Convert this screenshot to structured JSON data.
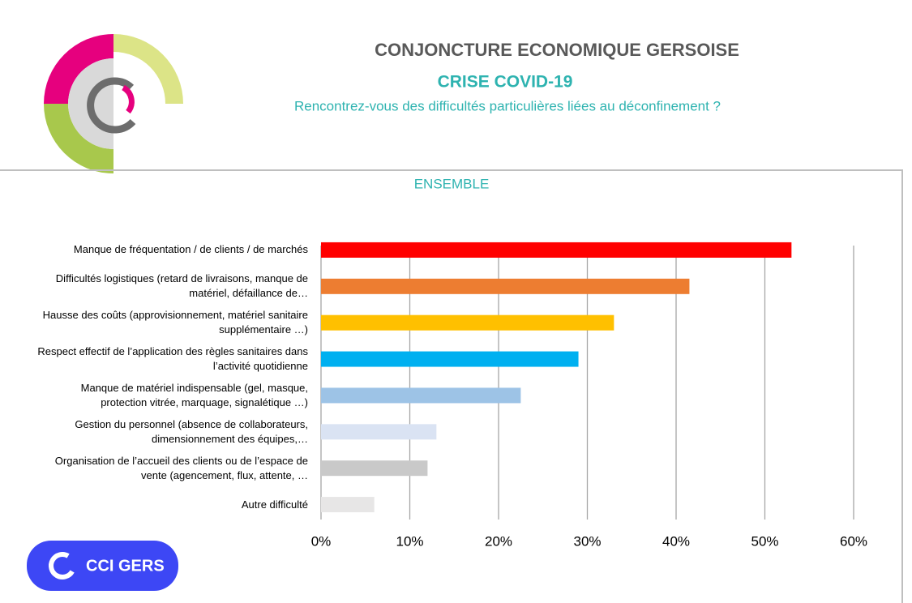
{
  "header": {
    "title": "CONJONCTURE ECONOMIQUE GERSOISE",
    "subtitle": "CRISE COVID-19",
    "question": "Rencontrez-vous des difficultés particulières liées au déconfinement ?"
  },
  "badge": "CCI GERS",
  "chart_data": {
    "type": "barh",
    "title": "ENSEMBLE",
    "categories": [
      "Manque de fréquentation / de clients / de marchés",
      "Difficultés logistiques (retard de livraisons, manque de matériel, défaillance de…",
      "Hausse des coûts (approvisionnement, matériel sanitaire supplémentaire …)",
      "Respect effectif de l’application des règles sanitaires dans l’activité quotidienne",
      "Manque de matériel indispensable (gel, masque, protection vitrée, marquage, signalétique …)",
      "Gestion du personnel (absence de collaborateurs, dimensionnement des équipes,…",
      "Organisation de l’accueil des clients ou de l’espace de vente (agencement, flux, attente, …",
      "Autre difficulté"
    ],
    "values": [
      53,
      41.5,
      33,
      29,
      22.5,
      13,
      12,
      6
    ],
    "colors": [
      "#ff0000",
      "#ed7d31",
      "#ffc000",
      "#00b0f0",
      "#9dc3e6",
      "#dae3f3",
      "#c9c9c9",
      "#e7e6e6"
    ],
    "xlim": [
      0,
      60
    ],
    "xticks": [
      {
        "value": 0,
        "label": "0%"
      },
      {
        "value": 10,
        "label": "10%"
      },
      {
        "value": 20,
        "label": "20%"
      },
      {
        "value": 30,
        "label": "30%"
      },
      {
        "value": 40,
        "label": "40%"
      },
      {
        "value": 50,
        "label": "50%"
      },
      {
        "value": 60,
        "label": "60%"
      }
    ],
    "grid": true
  }
}
